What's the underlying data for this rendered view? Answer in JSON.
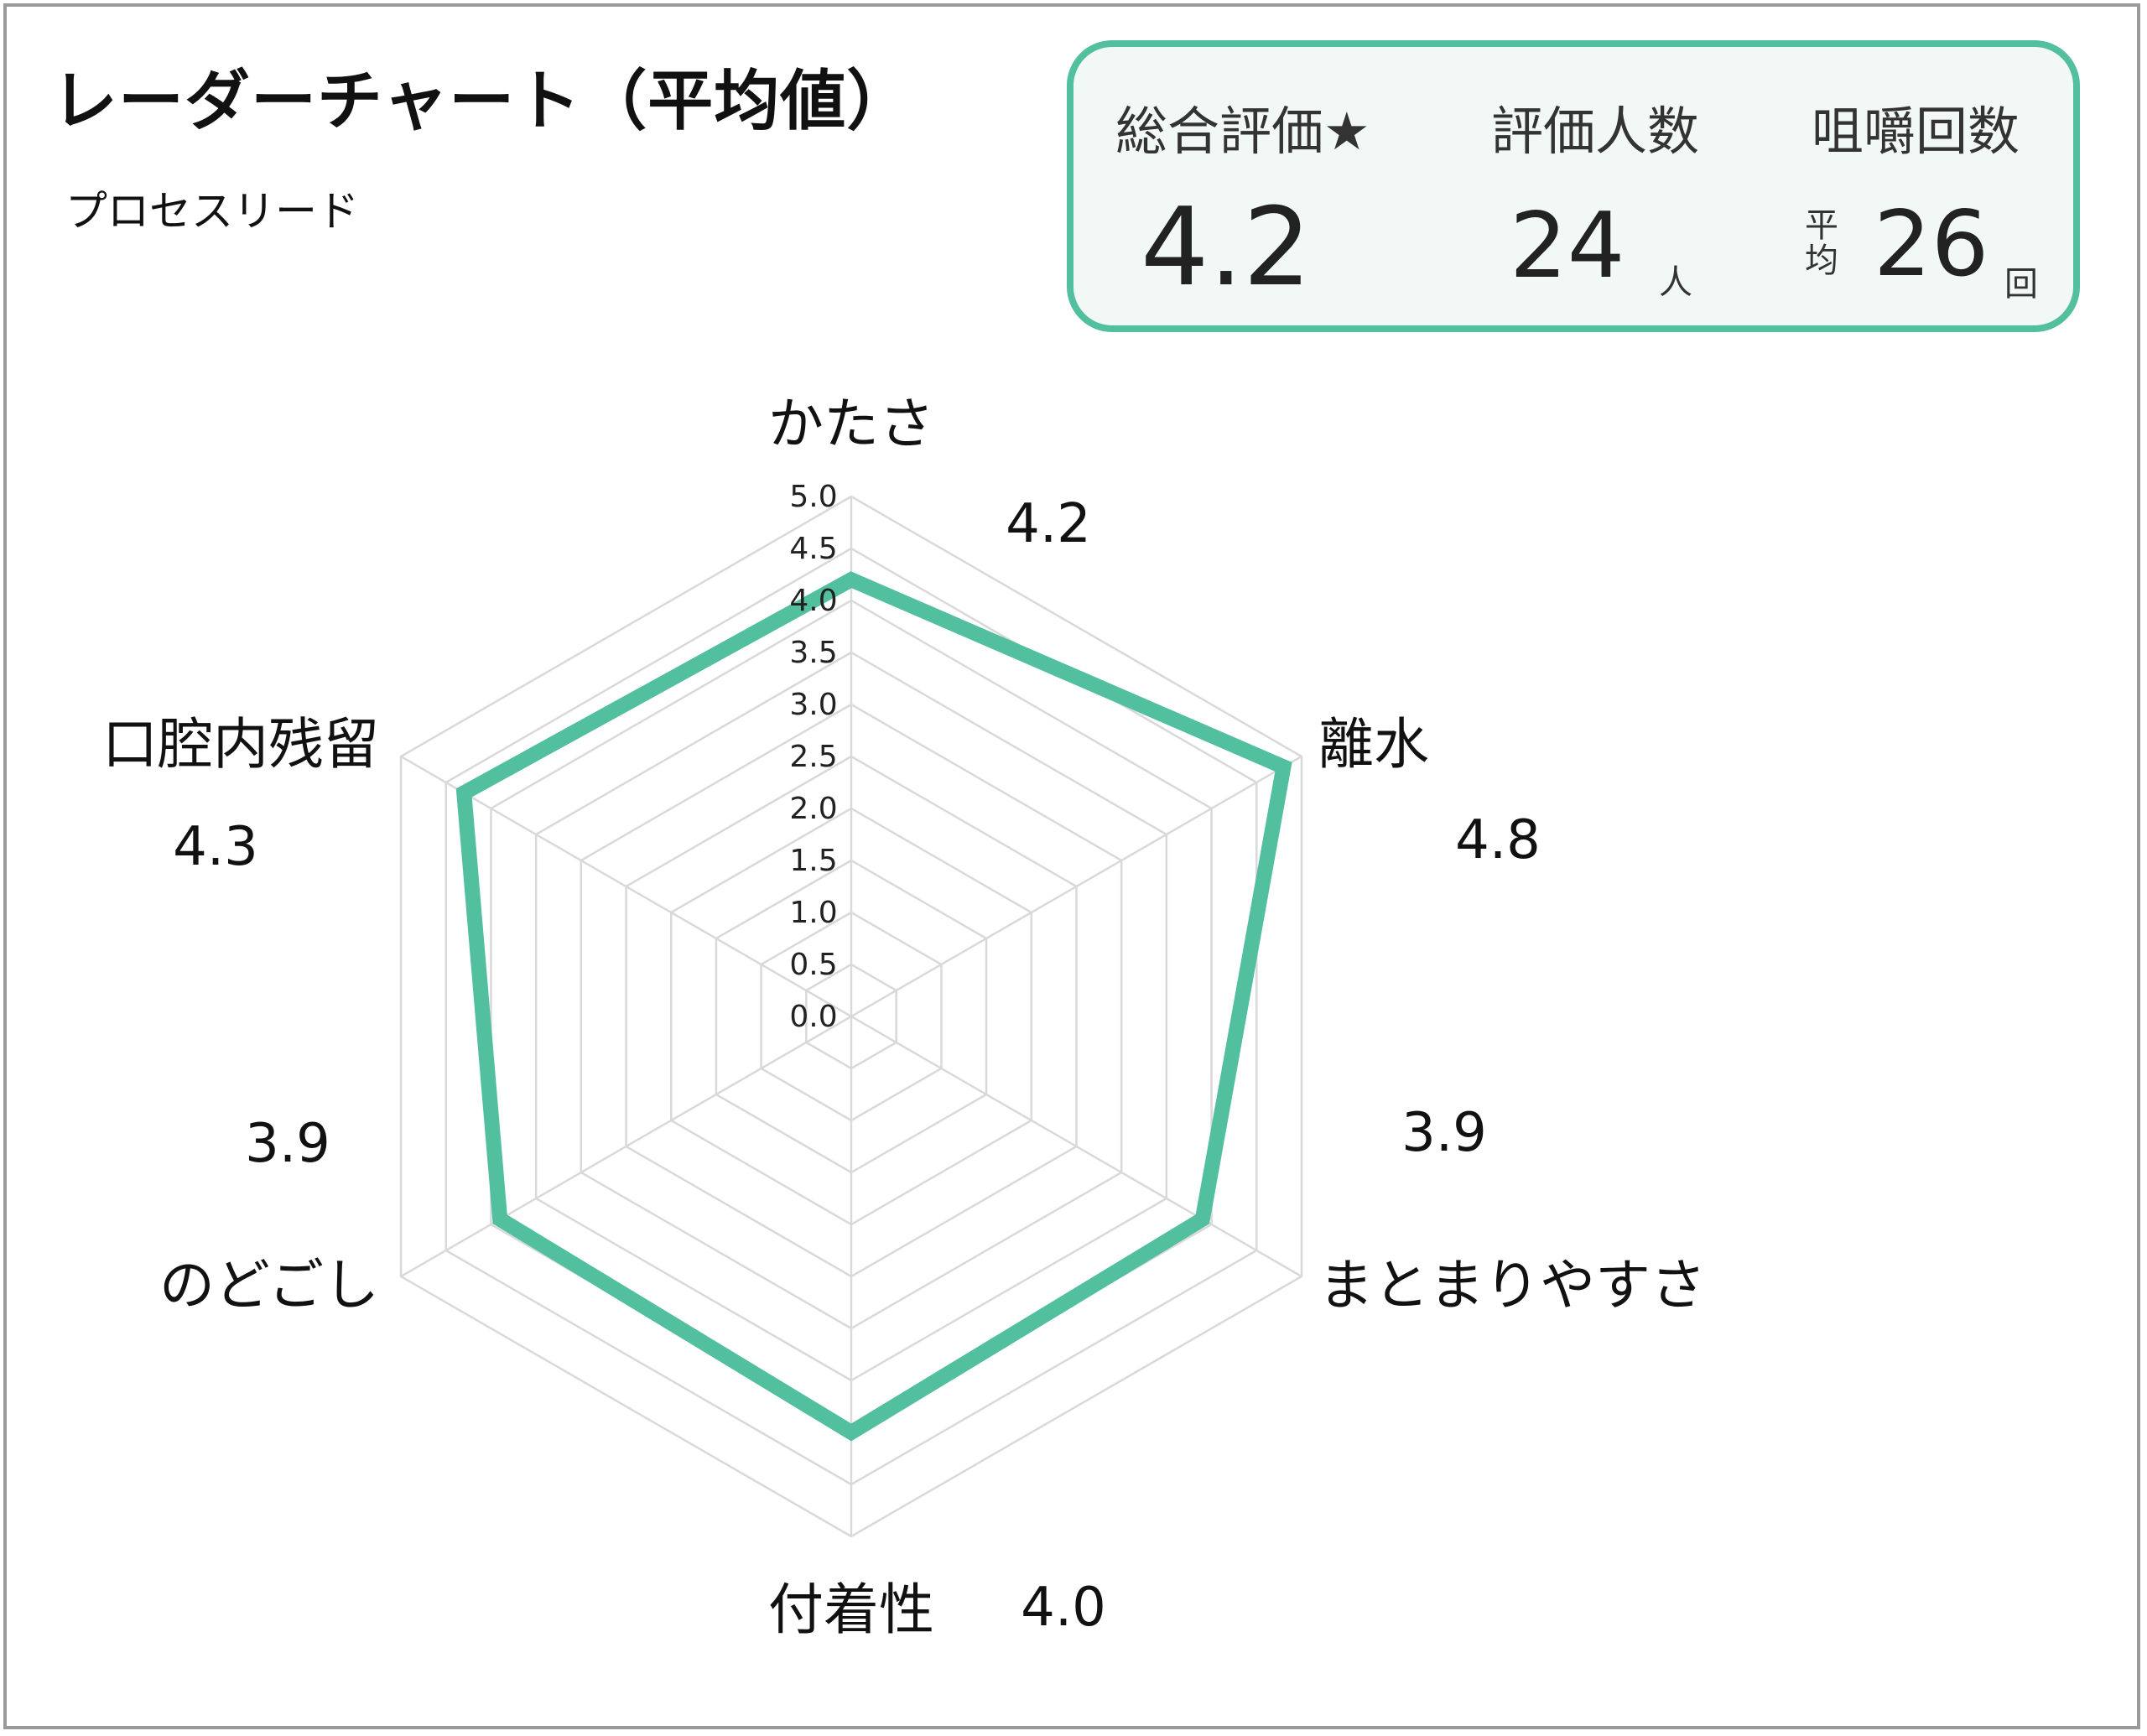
{
  "title": "レーダーチャート（平均値）",
  "subtitle": "プロセスリード",
  "summary": {
    "rating_label": "総合評価★",
    "rating_value": "4.2",
    "people_label": "評価人数",
    "people_value": "24",
    "people_unit": "人",
    "chew_label": "咀嚼回数",
    "chew_avg_top": "平",
    "chew_avg_bottom": "均",
    "chew_value": "26",
    "chew_unit": "回"
  },
  "colors": {
    "series": "#52bf9f",
    "grid": "#d9d9d9",
    "box_border": "#52bf9f",
    "box_background": "#f2f8f6"
  },
  "chart_data": {
    "type": "radar",
    "categories": [
      "かたさ",
      "離水",
      "まとまりやすさ",
      "付着性",
      "のどごし",
      "口腔内残留"
    ],
    "series": [
      {
        "values": [
          4.2,
          4.8,
          3.9,
          4.0,
          3.9,
          4.3
        ]
      }
    ],
    "value_labels": [
      "4.2",
      "4.8",
      "3.9",
      "4.0",
      "3.9",
      "4.3"
    ],
    "rlim": [
      0,
      5
    ],
    "ticks": [
      "0.0",
      "0.5",
      "1.0",
      "1.5",
      "2.0",
      "2.5",
      "3.0",
      "3.5",
      "4.0",
      "4.5",
      "5.0"
    ],
    "grid": true
  }
}
